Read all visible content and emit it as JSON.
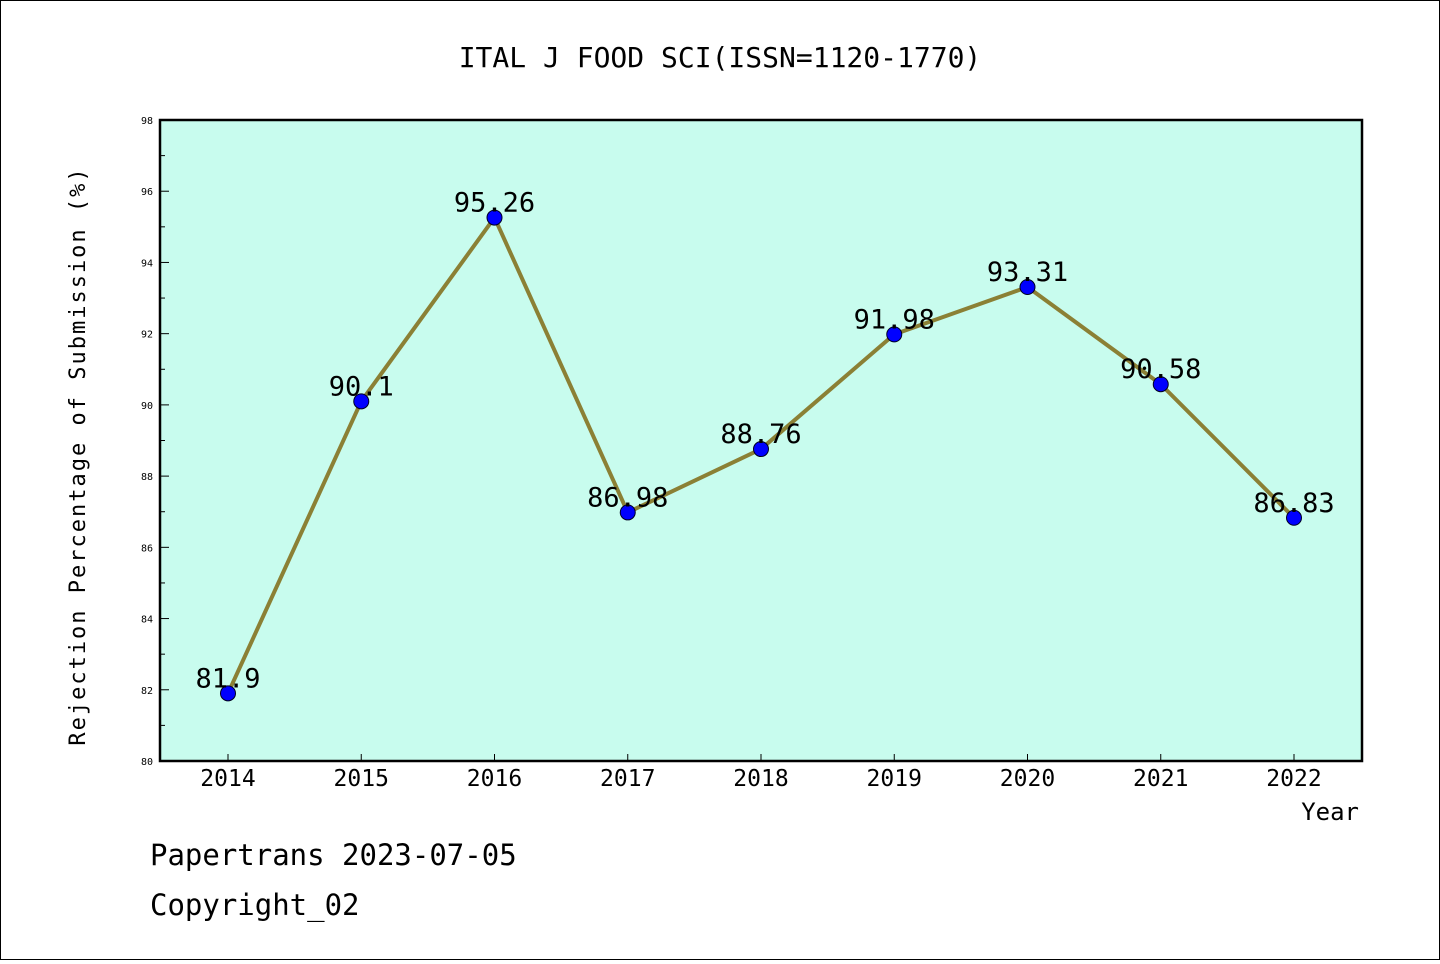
{
  "chart_data": {
    "type": "line",
    "title": "ITAL J FOOD SCI(ISSN=1120-1770)",
    "xlabel": "Year",
    "ylabel": "Rejection Percentage of Submission (%)",
    "categories": [
      "2014",
      "2015",
      "2016",
      "2017",
      "2018",
      "2019",
      "2020",
      "2021",
      "2022"
    ],
    "series": [
      {
        "values": [
          81.9,
          90.1,
          95.26,
          86.98,
          88.76,
          91.98,
          93.31,
          90.58,
          86.83
        ]
      }
    ],
    "data_labels": [
      "81.9",
      "90.1",
      "95.26",
      "86.98",
      "88.76",
      "91.98",
      "93.31",
      "90.58",
      "86.83"
    ],
    "ylim": [
      80,
      98
    ],
    "yticks": [
      "80",
      "82",
      "84",
      "86",
      "88",
      "90",
      "92",
      "94",
      "96",
      "98"
    ],
    "grid": false,
    "legend": "none",
    "colors": {
      "plot_background": "#c8fcee",
      "line": "#8b8035",
      "marker": "#0000ff"
    }
  },
  "footer": {
    "line1": "Papertrans 2023-07-05",
    "line2": "Copyright_02"
  }
}
